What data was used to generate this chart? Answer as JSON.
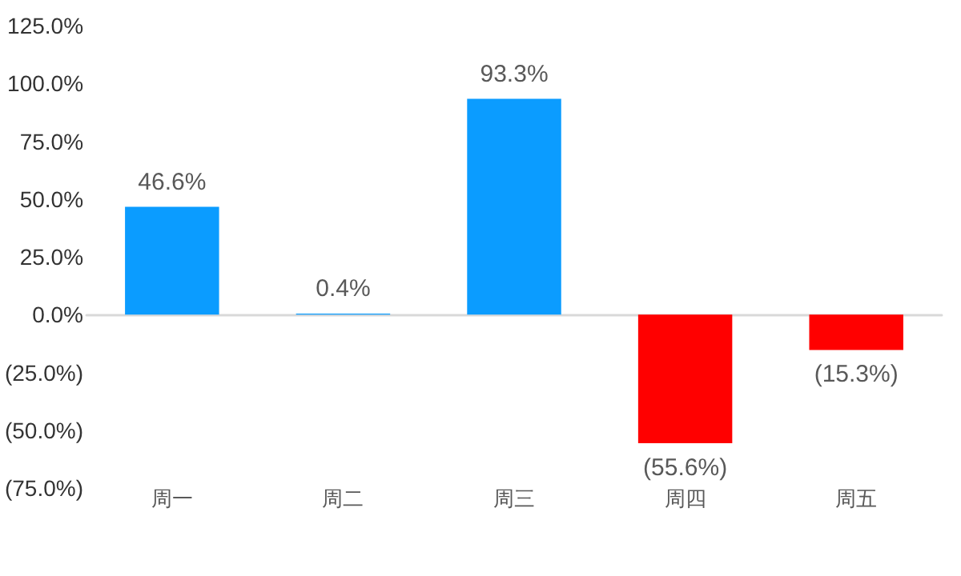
{
  "chart_data": {
    "type": "bar",
    "categories": [
      "周一",
      "周二",
      "周三",
      "周四",
      "周五"
    ],
    "values": [
      46.6,
      0.4,
      93.3,
      -55.6,
      -15.3
    ],
    "colors": [
      "#0b9cff",
      "#0b9cff",
      "#0b9cff",
      "#ff0000",
      "#ff0000"
    ],
    "value_labels": [
      "46.6%",
      "0.4%",
      "93.3%",
      "(55.6%)",
      "(15.3%)"
    ],
    "ylim": [
      -75,
      125
    ],
    "yticks": [
      {
        "value": -75,
        "label": "(75.0%)"
      },
      {
        "value": -50,
        "label": "(50.0%)"
      },
      {
        "value": -25,
        "label": "(25.0%)"
      },
      {
        "value": 0,
        "label": "0.0%"
      },
      {
        "value": 25,
        "label": "25.0%"
      },
      {
        "value": 50,
        "label": "50.0%"
      },
      {
        "value": 75,
        "label": "75.0%"
      },
      {
        "value": 100,
        "label": "100.0%"
      },
      {
        "value": 125,
        "label": "125.0%"
      }
    ]
  }
}
